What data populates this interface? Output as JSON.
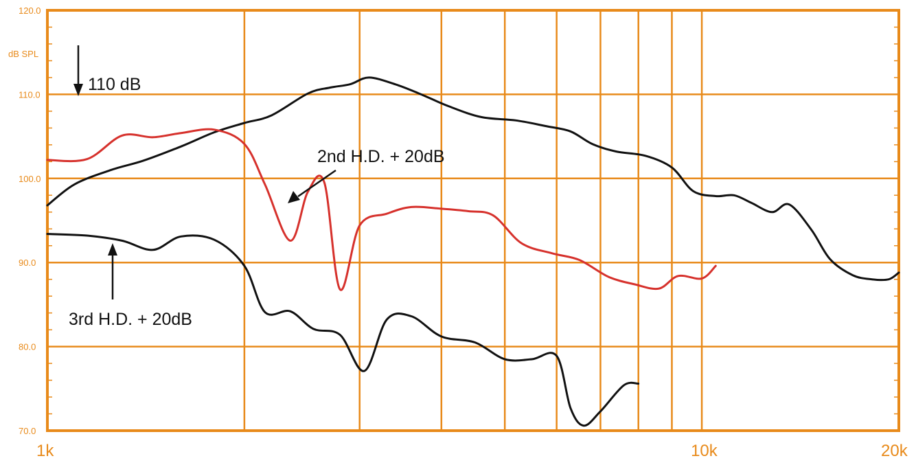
{
  "chart_data": {
    "type": "line",
    "title": "",
    "xlabel": "",
    "ylabel": "dB SPL",
    "x_scale": "log",
    "xlim": [
      1000,
      20000
    ],
    "ylim": [
      70,
      120
    ],
    "y_ticks": [
      "120.0",
      "110.0",
      "100.0",
      "90.0",
      "80.0",
      "70.0"
    ],
    "x_ticks": [
      "1k",
      "10k",
      "20k"
    ],
    "grid": true,
    "colors": {
      "axis": "#e88a1a",
      "grid": "#e88a1a",
      "main": "#111111",
      "second": "#d6312c",
      "third": "#111111",
      "annotation": "#111111"
    },
    "series": [
      {
        "id": "fundamental",
        "x": [
          1000,
          1100,
          1250,
          1400,
          1600,
          1800,
          2000,
          2200,
          2500,
          2700,
          2900,
          3100,
          3400,
          3700,
          4100,
          4600,
          5200,
          5800,
          6300,
          6800,
          7400,
          8200,
          9000,
          9700,
          10500,
          11200,
          11900,
          12800,
          13600,
          14700,
          15700,
          17000,
          18200,
          19300,
          20000
        ],
        "y": [
          96.8,
          99.3,
          101,
          102.1,
          103.8,
          105.5,
          106.6,
          107.5,
          110.1,
          110.8,
          111.2,
          112,
          111.2,
          110.1,
          108.6,
          107.3,
          106.9,
          106.2,
          105.6,
          104.1,
          103.2,
          102.7,
          101.3,
          98.5,
          97.9,
          98,
          97.1,
          96,
          96.9,
          93.9,
          90.4,
          88.5,
          88,
          88,
          88.8
        ]
      },
      {
        "id": "second_hd",
        "name": "2nd H.D. + 20dB",
        "x": [
          1000,
          1150,
          1300,
          1450,
          1600,
          1800,
          2000,
          2150,
          2350,
          2500,
          2650,
          2800,
          3000,
          3300,
          3600,
          4000,
          4400,
          4800,
          5300,
          5900,
          6500,
          7200,
          7900,
          8600,
          9200,
          10000,
          10500
        ],
        "y": [
          102.2,
          102.3,
          105.1,
          104.9,
          105.4,
          105.8,
          104.1,
          99.3,
          92.6,
          98.4,
          99.5,
          86.8,
          94.4,
          95.8,
          96.6,
          96.4,
          96.1,
          95.6,
          92.3,
          91.1,
          90.3,
          88.3,
          87.4,
          86.9,
          88.4,
          88.1,
          89.6
        ]
      },
      {
        "id": "third_hd",
        "name": "3rd H.D. + 20dB",
        "x": [
          1000,
          1150,
          1300,
          1450,
          1600,
          1800,
          2000,
          2150,
          2350,
          2550,
          2800,
          3050,
          3300,
          3600,
          4000,
          4500,
          5000,
          5500,
          6000,
          6300,
          6600,
          7000,
          7600,
          8000
        ],
        "y": [
          93.4,
          93.2,
          92.6,
          91.5,
          93.1,
          92.7,
          89.6,
          84.1,
          84.2,
          82.1,
          81.4,
          77.1,
          83.2,
          83.6,
          81.2,
          80.5,
          78.5,
          78.5,
          78.9,
          72.7,
          70.6,
          72.3,
          75.4,
          75.6
        ]
      }
    ],
    "annotations": {
      "ref_110": "110 dB",
      "second": "2nd H.D. + 20dB",
      "third": "3rd H.D. + 20dB"
    }
  }
}
